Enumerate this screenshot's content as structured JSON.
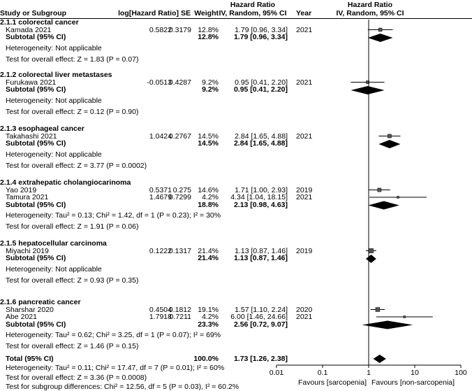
{
  "header": {
    "study": "Study or Subgroup",
    "loghr": "log[Hazard Ratio]",
    "se": "SE",
    "weight": "Weight",
    "hr_title": "Hazard Ratio",
    "hr_sub": "IV, Random, 95% CI",
    "year": "Year",
    "plot_title": "Hazard Ratio",
    "plot_sub": "IV, Random, 95% CI"
  },
  "chart_data": {
    "type": "forest",
    "x_scale": "log",
    "xlim": [
      0.01,
      100
    ],
    "x_ticks": [
      "0.01",
      "0.1",
      "1",
      "10",
      "100"
    ],
    "favours_left": "Favours [sarcopenia]",
    "favours_right": "Favours [non-sarcopenia]",
    "groups": [
      {
        "title": "2.1.1 colorectal cancer",
        "studies": [
          {
            "name": "Kamada 2021",
            "loghr": "0.5822",
            "se": "0.3179",
            "weight": "12.8%",
            "ci": "1.79 [0.96, 3.34]",
            "year": "2021",
            "hr": 1.79,
            "lo": 0.96,
            "hi": 3.34,
            "w": 12.8
          }
        ],
        "subtotal": {
          "label": "Subtotal (95% CI)",
          "weight": "12.8%",
          "ci": "1.79 [0.96, 3.34]",
          "hr": 1.79,
          "lo": 0.96,
          "hi": 3.34
        },
        "het": "Heterogeneity: Not applicable",
        "test": "Test for overall effect: Z = 1.83 (P = 0.07)"
      },
      {
        "title": "2.1.2 colorectal liver metastases",
        "studies": [
          {
            "name": "Furukawa 2021",
            "loghr": "-0.0513",
            "se": "0.4287",
            "weight": "9.2%",
            "ci": "0.95 [0.41, 2.20]",
            "year": "2021",
            "hr": 0.95,
            "lo": 0.41,
            "hi": 2.2,
            "w": 9.2
          }
        ],
        "subtotal": {
          "label": "Subtotal (95% CI)",
          "weight": "9.2%",
          "ci": "0.95 [0.41, 2.20]",
          "hr": 0.95,
          "lo": 0.41,
          "hi": 2.2
        },
        "het": "Heterogeneity: Not applicable",
        "test": "Test for overall effect: Z = 0.12 (P = 0.90)"
      },
      {
        "title": "2.1.3 esophageal cancer",
        "studies": [
          {
            "name": "Takahashi 2021",
            "loghr": "1.0424",
            "se": "0.2767",
            "weight": "14.5%",
            "ci": "2.84 [1.65, 4.88]",
            "year": "2021",
            "hr": 2.84,
            "lo": 1.65,
            "hi": 4.88,
            "w": 14.5
          }
        ],
        "subtotal": {
          "label": "Subtotal (95% CI)",
          "weight": "14.5%",
          "ci": "2.84 [1.65, 4.88]",
          "hr": 2.84,
          "lo": 1.65,
          "hi": 4.88
        },
        "het": "Heterogeneity: Not applicable",
        "test": "Test for overall effect: Z = 3.77 (P = 0.0002)"
      },
      {
        "title": "2.1.4 extrahepatic cholangiocarinoma",
        "studies": [
          {
            "name": "Yao 2019",
            "loghr": "0.5371",
            "se": "0.275",
            "weight": "14.6%",
            "ci": "1.71 [1.00, 2.93]",
            "year": "2019",
            "hr": 1.71,
            "lo": 1.0,
            "hi": 2.93,
            "w": 14.6
          },
          {
            "name": "Tamura 2021",
            "loghr": "1.4679",
            "se": "0.7299",
            "weight": "4.2%",
            "ci": "4.34 [1.04, 18.15]",
            "year": "2021",
            "hr": 4.34,
            "lo": 1.04,
            "hi": 18.15,
            "w": 4.2
          }
        ],
        "subtotal": {
          "label": "Subtotal (95% CI)",
          "weight": "18.8%",
          "ci": "2.13 [0.98, 4.63]",
          "hr": 2.13,
          "lo": 0.98,
          "hi": 4.63
        },
        "het": "Heterogeneity: Tau² = 0.13; Chi² = 1.42, df = 1 (P = 0.23); I² = 30%",
        "test": "Test for overall effect: Z = 1.91 (P = 0.06)"
      },
      {
        "title": "2.1.5 hepatocellular carcinoma",
        "studies": [
          {
            "name": "Miyachi 2019",
            "loghr": "0.1222",
            "se": "0.1317",
            "weight": "21.4%",
            "ci": "1.13 [0.87, 1.46]",
            "year": "2019",
            "hr": 1.13,
            "lo": 0.87,
            "hi": 1.46,
            "w": 21.4
          }
        ],
        "subtotal": {
          "label": "Subtotal (95% CI)",
          "weight": "21.4%",
          "ci": "1.13 [0.87, 1.46]",
          "hr": 1.13,
          "lo": 0.87,
          "hi": 1.46
        },
        "het": "Heterogeneity: Not applicable",
        "test": "Test for overall effect: Z = 0.93 (P = 0.35)"
      },
      {
        "title": "2.1.6 pancreatic cancer",
        "studies": [
          {
            "name": "Sharshar 2020",
            "loghr": "0.4504",
            "se": "0.1812",
            "weight": "19.1%",
            "ci": "1.57 [1.10, 2.24]",
            "year": "2020",
            "hr": 1.57,
            "lo": 1.1,
            "hi": 2.24,
            "w": 19.1
          },
          {
            "name": "Abe 2021",
            "loghr": "1.7918",
            "se": "0.7211",
            "weight": "4.2%",
            "ci": "6.00 [1.46, 24.66]",
            "year": "2021",
            "hr": 6.0,
            "lo": 1.46,
            "hi": 24.66,
            "w": 4.2
          }
        ],
        "subtotal": {
          "label": "Subtotal (95% CI)",
          "weight": "23.3%",
          "ci": "2.56 [0.72, 9.07]",
          "hr": 2.56,
          "lo": 0.72,
          "hi": 9.07
        },
        "het": "Heterogeneity: Tau² = 0.62; Chi² = 3.25, df = 1 (P = 0.07); I² = 69%",
        "test": "Test for overall effect: Z = 1.46 (P = 0.15)"
      }
    ],
    "total": {
      "label": "Total (95% CI)",
      "weight": "100.0%",
      "ci": "1.73 [1.26, 2.38]",
      "hr": 1.73,
      "lo": 1.26,
      "hi": 2.38
    },
    "footer": [
      "Heterogeneity: Tau² = 0.11; Chi² = 17.47, df = 7 (P = 0.01); I² = 60%",
      "Test for overall effect: Z = 3.36 (P = 0.0008)",
      "Test for subgroup differences: Chi² = 12.56, df = 5 (P = 0.03), I² = 60.2%"
    ]
  }
}
